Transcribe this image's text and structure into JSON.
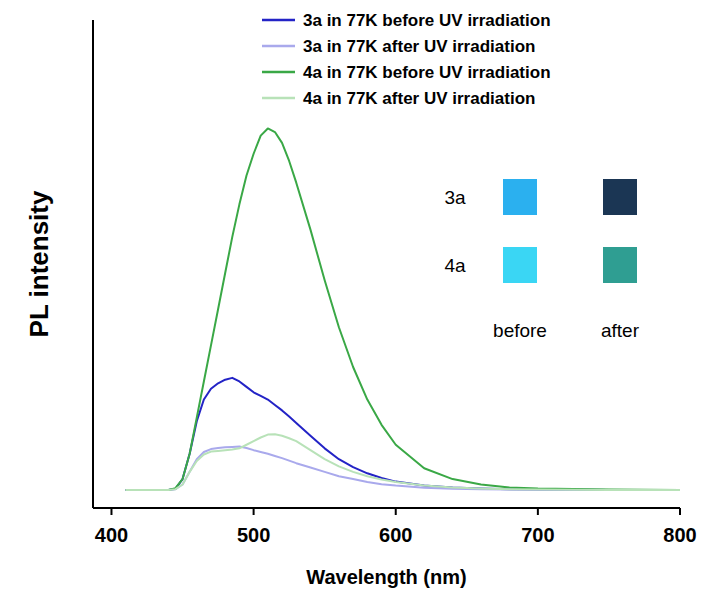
{
  "chart_data": {
    "type": "line",
    "x_label": "Wavelength (nm)",
    "y_label": "PL intensity",
    "xlim": [
      387,
      800
    ],
    "xticks": [
      400,
      500,
      600,
      700,
      800
    ],
    "ylim": [
      -5,
      130
    ],
    "yticks": [],
    "tick_labels": "x",
    "legend": "upper right",
    "grid": false,
    "x": [
      410,
      440,
      445,
      450,
      455,
      460,
      465,
      470,
      475,
      480,
      485,
      490,
      495,
      500,
      505,
      510,
      515,
      520,
      525,
      530,
      540,
      550,
      560,
      570,
      580,
      590,
      600,
      620,
      640,
      660,
      680,
      700,
      750,
      800
    ],
    "series": [
      {
        "name": "3a in 77K before UV irradiation",
        "color": "#2323c6",
        "values": [
          0,
          0,
          0.3,
          3,
          10,
          19,
          25,
          28,
          29.5,
          30.5,
          31,
          30,
          28.5,
          27,
          26,
          25,
          23.5,
          22,
          20.3,
          18.5,
          15,
          11.5,
          8.5,
          6.3,
          4.6,
          3.3,
          2.3,
          1.2,
          0.7,
          0.4,
          0.2,
          0.1,
          0,
          0
        ]
      },
      {
        "name": "3a in 77K after UV irradiation",
        "color": "#a9a9ec",
        "values": [
          0,
          0,
          0.2,
          1.5,
          5,
          8.5,
          10.5,
          11.3,
          11.6,
          11.8,
          11.9,
          12,
          11.6,
          11,
          10.5,
          10,
          9.4,
          8.8,
          8.1,
          7.4,
          6.2,
          5,
          3.8,
          3,
          2.2,
          1.6,
          1.2,
          0.6,
          0.3,
          0.2,
          0.1,
          0.1,
          0,
          0
        ]
      },
      {
        "name": "4a in 77K before UV irradiation",
        "color": "#3aa846",
        "values": [
          0,
          0,
          0.5,
          3,
          10,
          20,
          30,
          40,
          50,
          60,
          70,
          79,
          87,
          93,
          98,
          100,
          99,
          96,
          91,
          85,
          72,
          58,
          45,
          34,
          25,
          18,
          12.5,
          6,
          3,
          1.5,
          0.7,
          0.4,
          0.1,
          0
        ]
      },
      {
        "name": "4a in 77K after UV irradiation",
        "color": "#b8e2b8",
        "values": [
          0,
          0,
          0.2,
          1.5,
          5,
          8,
          9.8,
          10.6,
          10.8,
          11,
          11.2,
          11.5,
          12.5,
          13.5,
          14.5,
          15.3,
          15.4,
          15,
          14.3,
          13.5,
          11,
          8.5,
          6.5,
          5,
          3.8,
          2.9,
          2.2,
          1.2,
          0.7,
          0.4,
          0.2,
          0.1,
          0,
          0
        ]
      }
    ],
    "annotations": {
      "rows": [
        "3a",
        "4a"
      ],
      "columns": [
        "before",
        "after"
      ]
    }
  }
}
